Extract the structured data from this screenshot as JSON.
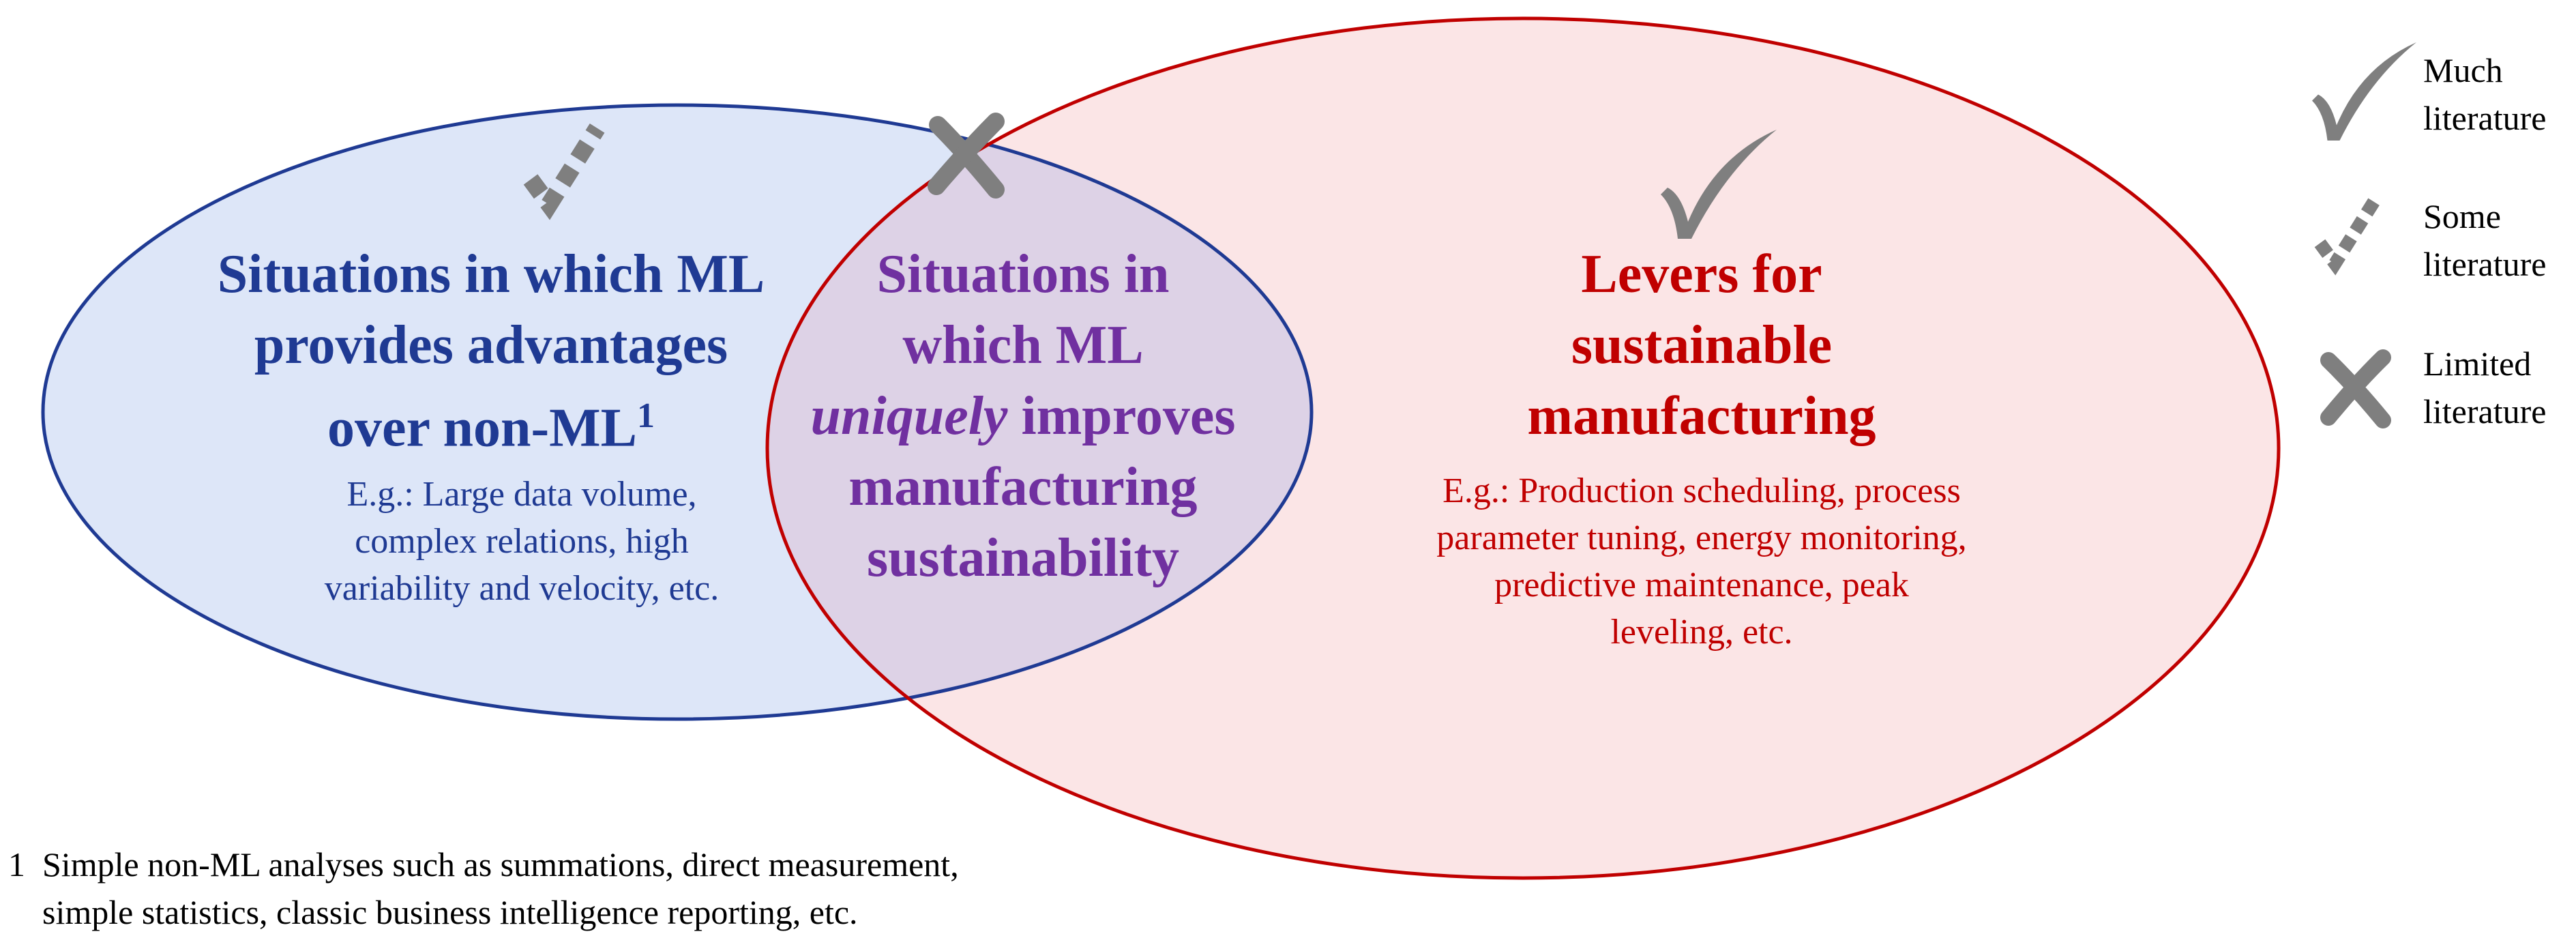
{
  "colors": {
    "blue_outline": "#1f3a93",
    "blue_fill": "#dde6f8",
    "red_outline": "#c00000",
    "red_fill": "#fbe5e6",
    "overlap_fill": "#ddd2e6",
    "purple_text": "#7030a0",
    "icon_gray": "#7f7f7f"
  },
  "left_set": {
    "heading_line1": "Situations in which ML",
    "heading_line2": "provides advantages",
    "heading_line3": "over non-ML",
    "heading_sup": "1",
    "example_line1": "E.g.: Large data volume,",
    "example_line2": "complex relations, high",
    "example_line3": "variability and velocity, etc.",
    "icon": "dashed-check-icon"
  },
  "intersection": {
    "heading_line1": "Situations in",
    "heading_line2": "which ML",
    "heading_line3_em": "uniquely",
    "heading_line3_rest": " improves",
    "heading_line4": "manufacturing",
    "heading_line5": "sustainability",
    "icon": "cross-icon"
  },
  "right_set": {
    "heading_line1": "Levers for",
    "heading_line2": "sustainable",
    "heading_line3": "manufacturing",
    "example_line1": "E.g.: Production scheduling, process",
    "example_line2": "parameter tuning, energy monitoring,",
    "example_line3": "predictive maintenance, peak",
    "example_line4": "leveling, etc.",
    "icon": "check-icon"
  },
  "legend": {
    "much_line1": "Much",
    "much_line2": "literature",
    "some_line1": "Some",
    "some_line2": "literature",
    "limited_line1": "Limited",
    "limited_line2": "literature"
  },
  "footnote": {
    "marker": "1",
    "line1": "Simple non-ML analyses such as summations, direct measurement,",
    "line2": "simple statistics, classic business intelligence reporting, etc."
  }
}
